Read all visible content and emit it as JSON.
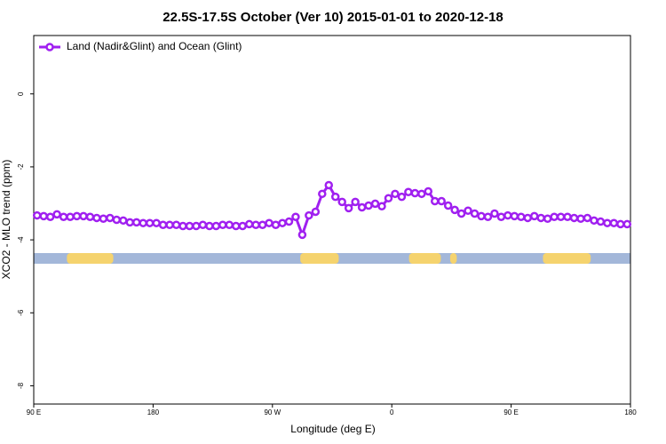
{
  "chart_data": {
    "type": "line",
    "title": "22.5S-17.5S October (Ver 10)   2015-01-01 to 2020-12-18",
    "x_label": "Longitude (deg E)",
    "y_label": "XCO2 - MLO trend (ppm)",
    "xlim": [
      90,
      540
    ],
    "ylim": [
      -8.5,
      1.6
    ],
    "xticks": [
      {
        "value": 90,
        "label": "90 E"
      },
      180,
      {
        "value": 270,
        "label": "90 W"
      },
      {
        "value": 360,
        "label": "0"
      },
      {
        "value": 450,
        "label": "90 E"
      },
      {
        "value": 540,
        "label": "180"
      }
    ],
    "yticks": [
      0,
      -2,
      -4,
      -6,
      -8
    ],
    "legend": "top-left",
    "land_color": "#f5d36e",
    "ocean_color": "#a3b7d9",
    "land_segments": [
      [
        115,
        150
      ],
      [
        291,
        320
      ],
      [
        373,
        397
      ],
      [
        404,
        409
      ],
      [
        474,
        510
      ]
    ],
    "x": [
      92.5,
      97.5,
      102.5,
      107.5,
      112.5,
      117.5,
      122.5,
      127.5,
      132.5,
      137.5,
      142.5,
      147.5,
      152.5,
      157.5,
      162.5,
      167.5,
      172.5,
      177.5,
      182.5,
      187.5,
      192.5,
      197.5,
      202.5,
      207.5,
      212.5,
      217.5,
      222.5,
      227.5,
      232.5,
      237.5,
      242.5,
      247.5,
      252.5,
      257.5,
      262.5,
      267.5,
      272.5,
      277.5,
      282.5,
      287.5,
      292.5,
      297.5,
      302.5,
      307.5,
      312.5,
      317.5,
      322.5,
      327.5,
      332.5,
      337.5,
      342.5,
      347.5,
      352.5,
      357.5,
      362.5,
      367.5,
      372.5,
      377.5,
      382.5,
      387.5,
      392.5,
      397.5,
      402.5,
      407.5,
      412.5,
      417.5,
      422.5,
      427.5,
      432.5,
      437.5,
      442.5,
      447.5,
      452.5,
      457.5,
      462.5,
      467.5,
      472.5,
      477.5,
      482.5,
      487.5,
      492.5,
      497.5,
      502.5,
      507.5,
      512.5,
      517.5,
      522.5,
      527.5,
      532.5,
      537.5
    ],
    "series": [
      {
        "name": "Land (Nadir&Glint) and Ocean (Glint)",
        "color": "#a020f0",
        "values": [
          -3.33,
          -3.35,
          -3.37,
          -3.3,
          -3.37,
          -3.37,
          -3.35,
          -3.35,
          -3.37,
          -3.4,
          -3.42,
          -3.4,
          -3.45,
          -3.47,
          -3.52,
          -3.52,
          -3.54,
          -3.54,
          -3.54,
          -3.59,
          -3.59,
          -3.59,
          -3.62,
          -3.62,
          -3.62,
          -3.59,
          -3.62,
          -3.62,
          -3.59,
          -3.59,
          -3.62,
          -3.62,
          -3.57,
          -3.59,
          -3.59,
          -3.54,
          -3.59,
          -3.54,
          -3.5,
          -3.37,
          -3.86,
          -3.33,
          -3.23,
          -2.74,
          -2.5,
          -2.82,
          -2.96,
          -3.13,
          -2.96,
          -3.11,
          -3.06,
          -3.01,
          -3.08,
          -2.86,
          -2.74,
          -2.82,
          -2.69,
          -2.72,
          -2.74,
          -2.67,
          -2.94,
          -2.94,
          -3.06,
          -3.18,
          -3.28,
          -3.2,
          -3.28,
          -3.35,
          -3.37,
          -3.28,
          -3.37,
          -3.33,
          -3.35,
          -3.37,
          -3.4,
          -3.35,
          -3.4,
          -3.42,
          -3.37,
          -3.37,
          -3.37,
          -3.4,
          -3.42,
          -3.4,
          -3.47,
          -3.5,
          -3.54,
          -3.54,
          -3.57,
          -3.57
        ]
      }
    ]
  }
}
